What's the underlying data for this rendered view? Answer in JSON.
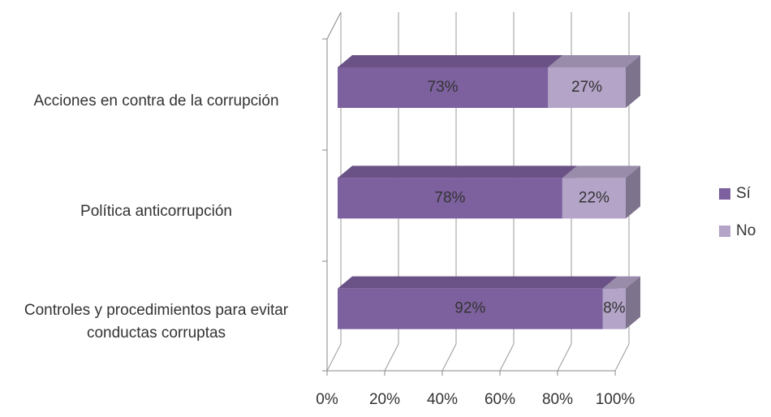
{
  "chart_data": {
    "type": "bar3d_stacked_h",
    "categories": [
      "Acciones en contra de la corrupción",
      "Política anticorrupción",
      "Controles y procedimientos para evitar conductas corruptas"
    ],
    "series": [
      {
        "name": "Sí",
        "color": "#7d619e",
        "values": [
          73,
          78,
          92
        ],
        "value_labels": [
          "73%",
          "78%",
          "92%"
        ]
      },
      {
        "name": "No",
        "color": "#b4a4c8",
        "values": [
          27,
          22,
          8
        ],
        "value_labels": [
          "27%",
          "22%",
          "8%"
        ]
      }
    ],
    "xlim": [
      0,
      100
    ],
    "xticks": [
      {
        "value": 0,
        "label": "0%"
      },
      {
        "value": 20,
        "label": "20%"
      },
      {
        "value": 40,
        "label": "40%"
      },
      {
        "value": 60,
        "label": "60%"
      },
      {
        "value": 80,
        "label": "80%"
      },
      {
        "value": 100,
        "label": "100%"
      }
    ],
    "grid": true,
    "legend": "right"
  }
}
